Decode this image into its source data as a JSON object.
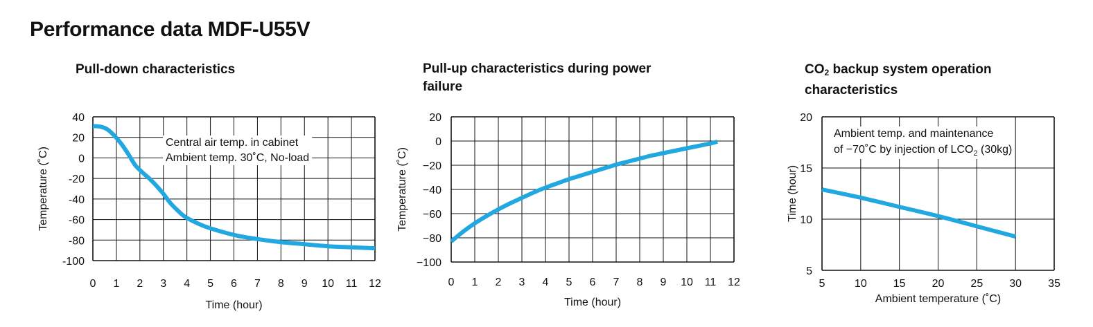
{
  "page_title": "Performance data MDF-U55V",
  "colors": {
    "curve": "#22a8e1",
    "grid": "#111111",
    "background": "#ffffff"
  },
  "chart_data": [
    {
      "type": "line",
      "title": "Pull-down characteristics",
      "xlabel": "Time (hour)",
      "ylabel": "Temperature (˚C)",
      "xlim": [
        0,
        12
      ],
      "ylim": [
        -100,
        40
      ],
      "x_ticks": [
        "0",
        "1",
        "2",
        "3",
        "4",
        "5",
        "6",
        "7",
        "8",
        "9",
        "10",
        "11",
        "12"
      ],
      "y_ticks": [
        "40",
        "20",
        "0",
        "-20",
        "-40",
        "-60",
        "-80",
        "-100"
      ],
      "annotations": [
        "Central air temp. in cabinet",
        "Ambient temp. 30˚C, No-load"
      ],
      "grid": true,
      "series": [
        {
          "x": [
            0,
            0.3,
            0.6,
            0.9,
            1.2,
            1.5,
            1.8,
            2.1,
            2.4,
            2.7,
            3.0,
            3.3,
            3.6,
            3.9,
            4.3,
            4.8,
            5.5,
            6.2,
            7.0,
            8.0,
            9.0,
            10.0,
            11.0,
            12.0
          ],
          "y": [
            31,
            30.5,
            28,
            22,
            14,
            4,
            -7,
            -14,
            -20,
            -27,
            -35,
            -44,
            -51,
            -57,
            -62,
            -67,
            -72,
            -76,
            -79,
            -82,
            -84,
            -86,
            -87,
            -88
          ]
        }
      ]
    },
    {
      "type": "line",
      "title": "Pull-up characteristics during power failure",
      "xlabel": "Time (hour)",
      "ylabel": "Temperature (˚C)",
      "xlim": [
        0,
        12
      ],
      "ylim": [
        -100,
        20
      ],
      "x_ticks": [
        "0",
        "1",
        "2",
        "3",
        "4",
        "5",
        "6",
        "7",
        "8",
        "9",
        "10",
        "11",
        "12"
      ],
      "y_ticks": [
        "20",
        "0",
        "−20",
        "−40",
        "−60",
        "−80",
        "−100"
      ],
      "grid": true,
      "series": [
        {
          "x": [
            0,
            0.5,
            1,
            1.5,
            2,
            2.5,
            3,
            3.5,
            4,
            4.5,
            5,
            5.5,
            6,
            6.5,
            7,
            7.5,
            8,
            8.5,
            9,
            9.5,
            10,
            10.5,
            11,
            11.3
          ],
          "y": [
            -83,
            -75,
            -68,
            -62,
            -56.5,
            -51.5,
            -47,
            -42.5,
            -38.5,
            -35,
            -31.5,
            -28.5,
            -25.5,
            -22.5,
            -19.5,
            -17,
            -14.5,
            -12,
            -10,
            -8,
            -6,
            -4,
            -2,
            -0.5
          ]
        }
      ]
    },
    {
      "type": "line",
      "title_prefix": "CO",
      "title_sub": "2",
      "title_suffix": " backup system operation characteristics",
      "xlabel": "Ambient temperature (˚C)",
      "ylabel": "Time (hour)",
      "xlim": [
        5,
        35
      ],
      "ylim": [
        5,
        20
      ],
      "x_ticks": [
        "5",
        "10",
        "15",
        "20",
        "25",
        "30",
        "35"
      ],
      "y_ticks": [
        "20",
        "15",
        "10",
        "5"
      ],
      "annotations": [
        "Ambient temp. and maintenance",
        "of −70˚C by injection of LCO",
        "2",
        " (30kg)"
      ],
      "grid": true,
      "series": [
        {
          "x": [
            5,
            10,
            15,
            20,
            25,
            30
          ],
          "y": [
            12.9,
            12.1,
            11.2,
            10.3,
            9.3,
            8.3
          ]
        }
      ]
    }
  ]
}
